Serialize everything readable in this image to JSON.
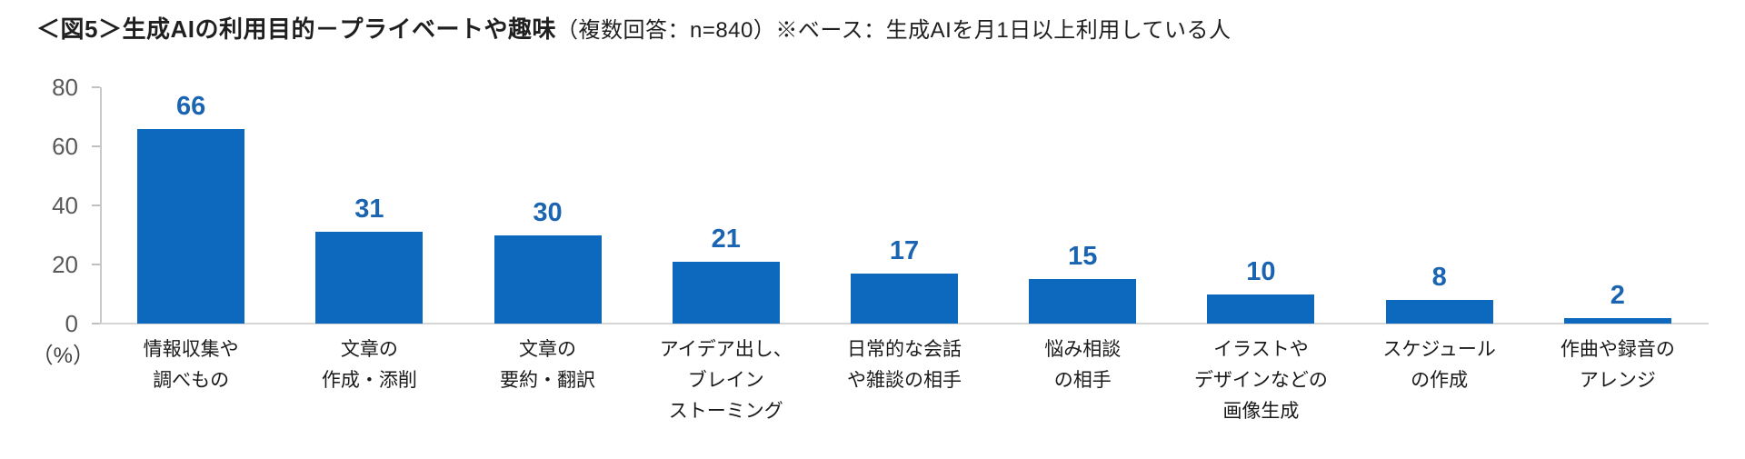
{
  "chart_data": {
    "type": "bar",
    "title": "＜図5＞生成AIの利用目的－プライベートや趣味",
    "title_note": "（複数回答：n=840）※ベース：生成AIを月1日以上利用している人",
    "unit_label": "（%）",
    "categories": [
      "情報収集や\n調べもの",
      "文章の\n作成・添削",
      "文章の\n要約・翻訳",
      "アイデア出し、\nブレイン\nストーミング",
      "日常的な会話\nや雑談の相手",
      "悩み相談\nの相手",
      "イラストや\nデザインなどの\n画像生成",
      "スケジュール\nの作成",
      "作曲や録音の\nアレンジ"
    ],
    "values": [
      66,
      31,
      30,
      21,
      17,
      15,
      10,
      8,
      2
    ],
    "yticks": [
      0,
      20,
      40,
      60,
      80
    ],
    "ylim": [
      0,
      80
    ],
    "grid": false,
    "legend": false,
    "data_labels": true,
    "bar_color": "#0d69bd",
    "value_label_color": "#1a64b2",
    "axis_color": "#c9c9c9",
    "baseline_color": "#d6d6d6",
    "tick_label_color": "#595959",
    "category_label_color": "#1a1a1a"
  }
}
